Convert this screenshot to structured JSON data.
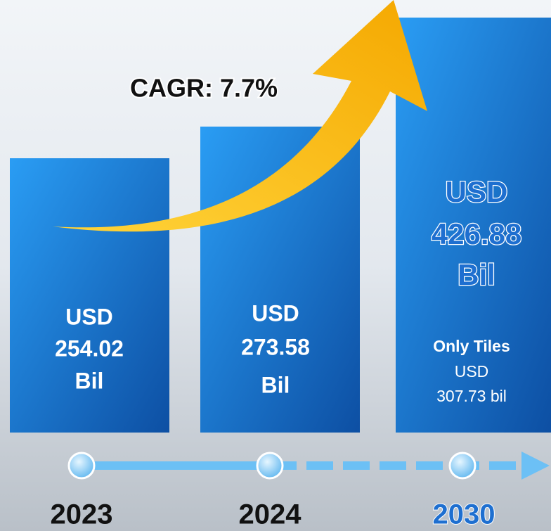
{
  "cagr": "CAGR: 7.7%",
  "bars": [
    {
      "year": "2023",
      "lines": [
        "USD",
        "254.02",
        "Bil"
      ]
    },
    {
      "year": "2024",
      "lines": [
        "USD",
        "273.58",
        "Bil"
      ]
    },
    {
      "year": "2030",
      "lines": [
        "USD",
        "426.88",
        "Bil"
      ],
      "note": [
        "Only Tiles",
        "USD",
        "307.73 bil"
      ]
    }
  ]
}
